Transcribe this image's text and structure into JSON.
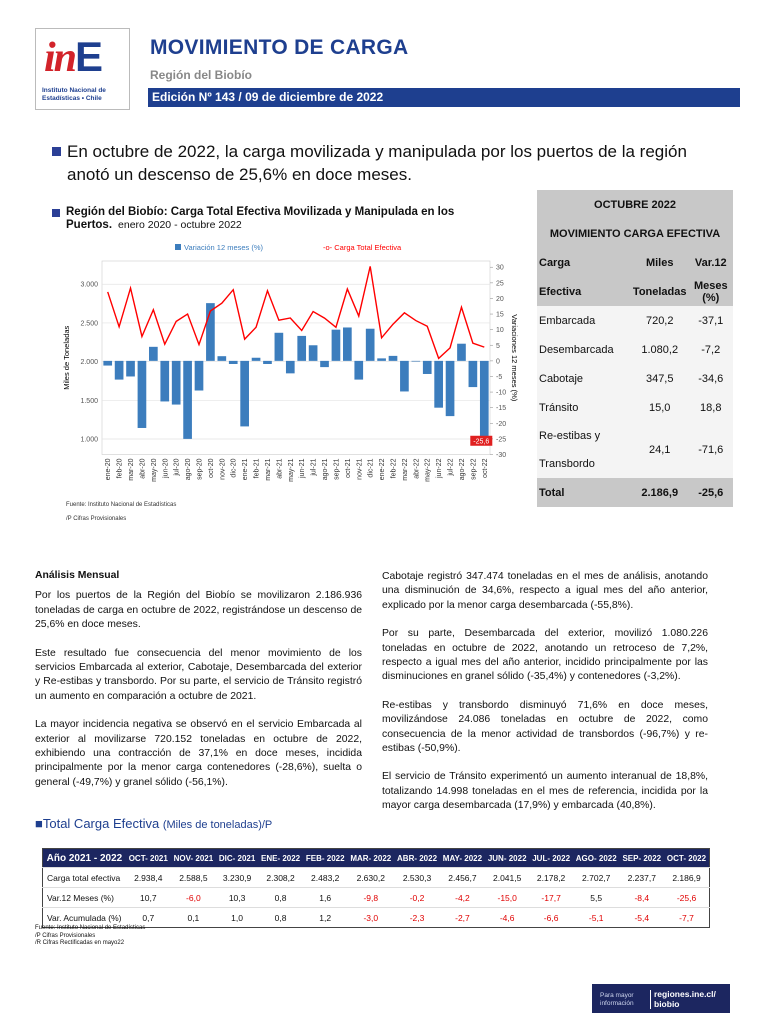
{
  "header": {
    "logo_red": "in",
    "logo_blue": "E",
    "logo_caption": "Instituto Nacional de Estadísticas • Chile",
    "title": "MOVIMIENTO DE CARGA",
    "region": "Región del Biobío",
    "edition": "Edición Nº 143 / 09 de diciembre de 2022"
  },
  "headline": "En octubre de 2022, la carga movilizada y manipulada por los puertos de la región anotó un descenso de 25,6% en doce meses.",
  "chart_data": {
    "type": "bar-line",
    "title": "Región del Biobío: Carga Total Efectiva Movilizada y Manipulada en los Puertos.",
    "subtitle": "enero 2020 - octubre 2022",
    "y_label": "Miles de Toneladas",
    "y2_label": "Variaciones 12 meses (%)",
    "categories": [
      "ene-20",
      "feb-20",
      "mar-20",
      "abr-20",
      "may-20",
      "jun-20",
      "jul-20",
      "ago-20",
      "sep-20",
      "oct-20",
      "nov-20",
      "dic-20",
      "ene-21",
      "feb-21",
      "mar-21",
      "abr-21",
      "may-21",
      "jun-21",
      "jul-21",
      "ago-21",
      "sep-21",
      "oct-21",
      "nov-21",
      "dic-21",
      "ene-22",
      "feb-22",
      "mar-22",
      "abr-22",
      "may-22",
      "jun-22",
      "jul-22",
      "ago-22",
      "sep-22",
      "oct-22"
    ],
    "series": [
      {
        "name": "Variación 12 meses (%)",
        "color": "#3c7dbd",
        "axis": "y2",
        "values": [
          -1.5,
          -6,
          -5,
          -21.5,
          4.5,
          -13,
          -14,
          -25,
          -9.5,
          18.5,
          1.5,
          -1,
          -21,
          1,
          -1,
          9,
          -4,
          8,
          5,
          -2,
          10,
          10.7,
          -6.0,
          10.3,
          0.8,
          1.6,
          -9.8,
          -0.2,
          -4.2,
          -15.0,
          -17.7,
          5.5,
          -8.4,
          -25.6
        ],
        "value_labels": [
          null,
          null,
          null,
          null,
          null,
          null,
          null,
          null,
          null,
          null,
          null,
          null,
          null,
          null,
          null,
          null,
          null,
          null,
          null,
          null,
          null,
          null,
          null,
          null,
          null,
          null,
          null,
          null,
          null,
          null,
          null,
          null,
          null,
          "-25,6"
        ]
      },
      {
        "name": "-o- Carga Total Efectiva",
        "color": "#ff0000",
        "axis": "y",
        "values": [
          2900,
          2450,
          2950,
          2325,
          2670,
          2225,
          2520,
          2615,
          2220,
          2654,
          2754,
          2929,
          2290,
          2444,
          2916,
          2535,
          2564,
          2402,
          2647,
          2562,
          2443,
          2938.4,
          2588.5,
          3230.9,
          2308.2,
          2483.2,
          2630.2,
          2530.3,
          2456.7,
          2041.5,
          2178.2,
          2702.7,
          2237.7,
          2186.9
        ]
      }
    ],
    "ylim": [
      800,
      3300
    ],
    "yticks": [
      {
        "value": 1000,
        "label": "1.000"
      },
      {
        "value": 1500,
        "label": "1.500"
      },
      {
        "value": 2000,
        "label": "2.000"
      },
      {
        "value": 2500,
        "label": "2.500"
      },
      {
        "value": 3000,
        "label": "3.000"
      }
    ],
    "y2lim": [
      -30,
      32
    ],
    "y2ticks": [
      -30,
      -25,
      -20,
      -15,
      -10,
      -5,
      0,
      5,
      10,
      15,
      20,
      25,
      30
    ],
    "grid": true,
    "source": "Fuente: Instituto Nacional de Estadísticas",
    "note": "/P Cifras Provisionales"
  },
  "summary_table": {
    "title1": "OCTUBRE 2022",
    "title2": "MOVIMIENTO CARGA EFECTIVA",
    "header": [
      [
        "Carga",
        "Miles",
        "Var.12"
      ],
      [
        "Efectiva",
        "Toneladas",
        "Meses (%)"
      ]
    ],
    "rows": [
      [
        "Embarcada",
        "720,2",
        "-37,1"
      ],
      [
        "Desembarcada",
        "1.080,2",
        "-7,2"
      ],
      [
        "Cabotaje",
        "347,5",
        "-34,6"
      ],
      [
        "Tránsito",
        "15,0",
        "18,8"
      ],
      [
        "Re-estibas y Transbordo",
        "24,1",
        "-71,6"
      ]
    ],
    "total": [
      "Total",
      "2.186,9",
      "-25,6"
    ]
  },
  "analysis": {
    "title": "Análisis Mensual",
    "left": [
      "Por los puertos de la Región del Biobío se movilizaron 2.186.936 toneladas de carga en octubre de 2022, registrándose un descenso de 25,6% en doce meses.",
      "Este resultado fue consecuencia del menor movimiento de los servicios Embarcada al exterior, Cabotaje, Desembarcada del exterior y Re-estibas y transbordo.  Por su parte, el servicio de Tránsito registró un aumento en comparación a octubre de 2021.",
      "La mayor incidencia negativa se observó en el servicio Embarcada al exterior al movilizarse 720.152 toneladas en octubre de 2022, exhibiendo una contracción de 37,1% en doce meses, incidida principalmente por la menor carga contenedores (-28,6%), suelta o general (-49,7%) y granel sólido (-56,1%)."
    ],
    "right": [
      "Cabotaje registró 347.474 toneladas en el mes de análisis, anotando una disminución de 34,6%, respecto a igual mes del año anterior, explicado por la menor carga desembarcada (-55,8%).",
      "Por su parte, Desembarcada del exterior, movilizó 1.080.226 toneladas en octubre de 2022, anotando un retroceso de 7,2%, respecto a igual mes del año anterior, incidido principalmente por las disminuciones en granel sólido (-35,4%) y contenedores (-3,2%).",
      "Re-estibas y transbordo disminuyó 71,6% en doce meses, movilizándose 24.086 toneladas en octubre de 2022, como consecuencia de la menor actividad de transbordos (-96,7%) y re-estibas (-50,9%).",
      "El servicio de Tránsito experimentó un aumento interanual de 18,8%, totalizando 14.998 toneladas en el mes de referencia, incidida por la mayor carga desembarcada (17,9%) y embarcada (40,8%)."
    ]
  },
  "monthly_table": {
    "title": "Total Carga Efectiva",
    "unit": "(Miles de toneladas)/P",
    "header": [
      "Año 2021 - 2022",
      "OCT- 2021",
      "NOV- 2021",
      "DIC- 2021",
      "ENE- 2022",
      "FEB- 2022",
      "MAR- 2022",
      "ABR- 2022",
      "MAY- 2022",
      "JUN- 2022",
      "JUL- 2022",
      "AGO- 2022",
      "SEP- 2022",
      "OCT- 2022"
    ],
    "rows": [
      [
        "Carga total efectiva",
        "2.938,4",
        "2.588,5",
        "3.230,9",
        "2.308,2",
        "2.483,2",
        "2.630,2",
        "2.530,3",
        "2.456,7",
        "2.041,5",
        "2.178,2",
        "2.702,7",
        "2.237,7",
        "2.186,9"
      ],
      [
        "Var.12 Meses (%)",
        "10,7",
        "-6,0",
        "10,3",
        "0,8",
        "1,6",
        "-9,8",
        "-0,2",
        "-4,2",
        "-15,0",
        "-17,7",
        "5,5",
        "-8,4",
        "-25,6"
      ],
      [
        "Var. Acumulada (%)",
        "0,7",
        "0,1",
        "1,0",
        "0,8",
        "1,2",
        "-3,0",
        "-2,3",
        "-2,7",
        "-4,6",
        "-6,6",
        "-5,1",
        "-5,4",
        "-7,7"
      ]
    ],
    "notes": [
      "Fuente: Instituto Nacional de Estadísticas",
      "/P Cifras Provisionales",
      "/R Cifras Rectificadas en mayo22"
    ]
  },
  "badge": {
    "small": "Para mayor información",
    "link": "regiones.ine.cl/ biobio"
  }
}
